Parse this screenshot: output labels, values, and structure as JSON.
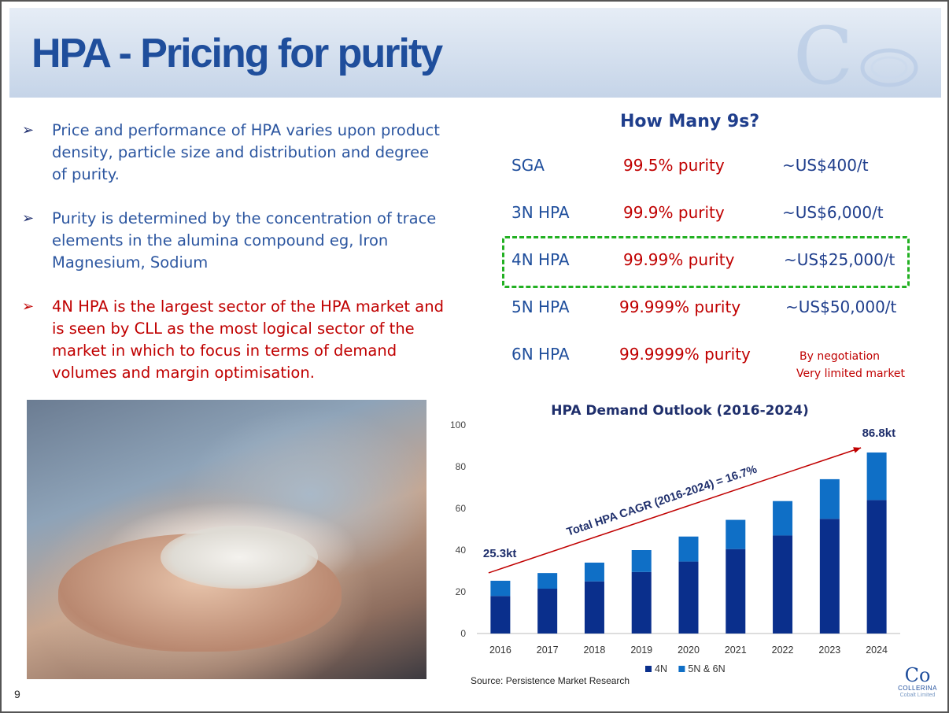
{
  "slide": {
    "title": "HPA - Pricing  for purity",
    "page_number": "9"
  },
  "bullets": [
    {
      "arrow": "➢",
      "text": "Price and performance of HPA varies upon product density, particle size and distribution and degree of purity.",
      "color": "#2c56a0"
    },
    {
      "arrow": "➢",
      "text": "Purity is determined by the concentration of trace elements in the alumina compound eg, Iron Magnesium, Sodium",
      "color": "#2c56a0"
    },
    {
      "arrow": "➢",
      "text": "4N HPA is the largest sector of the HPA market and is seen by CLL as the most logical sector of the market in which to focus in terms of demand volumes and margin optimisation.",
      "color": "#c00000"
    }
  ],
  "nines": {
    "title": "How Many 9s?",
    "rows": [
      {
        "grade": "SGA",
        "purity": "99.5% purity",
        "price": "~US$400/t"
      },
      {
        "grade": "3N HPA",
        "purity": "99.9% purity",
        "price": "~US$6,000/t"
      },
      {
        "grade": "4N HPA",
        "purity": "99.99% purity",
        "price": "~US$25,000/t"
      },
      {
        "grade": "5N HPA",
        "purity": "99.999% purity",
        "price": "~US$50,000/t"
      },
      {
        "grade": "6N HPA",
        "purity": "99.9999% purity",
        "price": ""
      }
    ],
    "negotiation_line1": "By negotiation",
    "negotiation_line2": "Very limited market",
    "highlight_color": "#22b022"
  },
  "chart_data": {
    "type": "bar",
    "title": "HPA Demand Outlook (2016-2024)",
    "categories": [
      "2016",
      "2017",
      "2018",
      "2019",
      "2020",
      "2021",
      "2022",
      "2023",
      "2024"
    ],
    "stacked": true,
    "series": [
      {
        "name": "4N",
        "color": "#0a2f8c",
        "values": [
          18,
          21.5,
          25,
          29.5,
          34.5,
          40.5,
          47,
          55,
          64
        ]
      },
      {
        "name": "5N & 6N",
        "color": "#0f6fc6",
        "values": [
          7.3,
          7.5,
          9,
          10.5,
          12,
          14,
          16.5,
          19,
          22.8
        ]
      }
    ],
    "ylim": [
      0,
      100
    ],
    "yticks": [
      0,
      20,
      40,
      60,
      80,
      100
    ],
    "xlabel": "",
    "ylabel": "",
    "grid": false,
    "legend": "bottom",
    "annotations": {
      "start_label": "25.3kt",
      "end_label": "86.8kt",
      "cagr_label": "Total HPA CAGR (2016-2024) = 16.7%",
      "arrow_color": "#c00000"
    }
  },
  "source": "Source: Persistence Market Research",
  "logo": {
    "mark": "Co",
    "name": "COLLERINA",
    "sub": "Cobalt Limited"
  }
}
